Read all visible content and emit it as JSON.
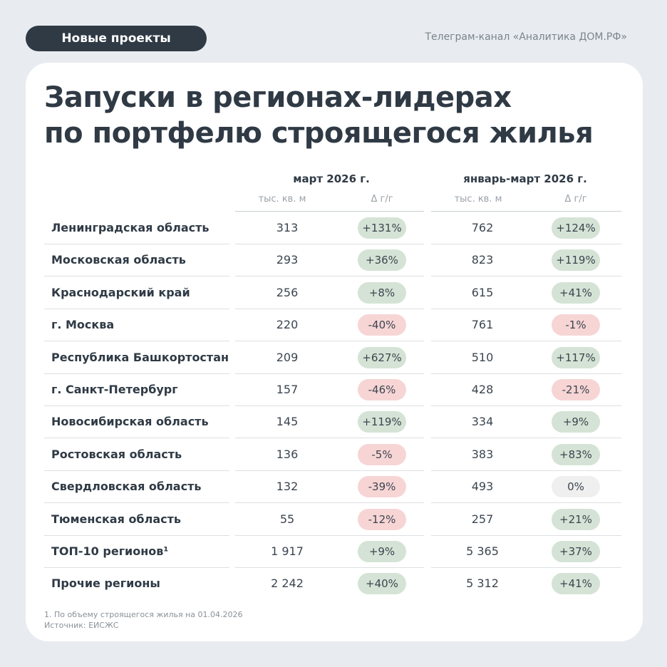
{
  "header": {
    "tag": "Новые проекты",
    "source": "Телеграм-канал «Аналитика ДОМ.РФ»"
  },
  "title": [
    "Запуски в регионах-лидерах",
    "по портфелю строящегося жилья"
  ],
  "table": {
    "groups": [
      "март 2026 г.",
      "январь-март 2026 г."
    ],
    "subheaders": [
      "тыс. кв. м",
      "Δ г/г",
      "тыс. кв. м",
      "Δ г/г"
    ],
    "rows": [
      [
        "Ленинградская область",
        "313",
        "+131%",
        "762",
        "+124%"
      ],
      [
        "Московская область",
        "293",
        "+36%",
        "823",
        "+119%"
      ],
      [
        "Краснодарский край",
        "256",
        "+8%",
        "615",
        "+41%"
      ],
      [
        "г. Москва",
        "220",
        "-40%",
        "761",
        "-1%"
      ],
      [
        "Республика Башкортостан",
        "209",
        "+627%",
        "510",
        "+117%"
      ],
      [
        "г. Санкт-Петербург",
        "157",
        "-46%",
        "428",
        "-21%"
      ],
      [
        "Новосибирская область",
        "145",
        "+119%",
        "334",
        "+9%"
      ],
      [
        "Ростовская  область",
        "136",
        "-5%",
        "383",
        "+83%"
      ],
      [
        "Свердловская  область",
        "132",
        "-39%",
        "493",
        "0%"
      ],
      [
        "Тюменская область",
        "55",
        "-12%",
        "257",
        "+21%"
      ],
      [
        "ТОП-10 регионов¹",
        "1 917",
        "+9%",
        "5 365",
        "+37%"
      ],
      [
        "Прочие регионы",
        "2 242",
        "+40%",
        "5 312",
        "+41%"
      ]
    ]
  },
  "footnotes": [
    "1. По объему строящегося жилья на 01.04.2026",
    "Источник: ЕИСЖС"
  ]
}
